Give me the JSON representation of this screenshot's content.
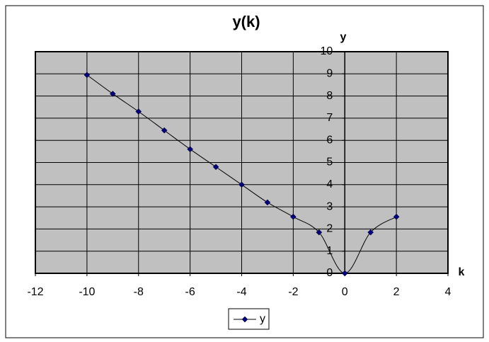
{
  "chart_data": {
    "type": "line",
    "title": "y(k)",
    "x_label": "k",
    "y_label": "y",
    "x": [
      -10,
      -9,
      -8,
      -7,
      -6,
      -5,
      -4,
      -3,
      -2,
      -1,
      0,
      1,
      2
    ],
    "series": [
      {
        "name": "y",
        "color": "#000080",
        "values": [
          8.95,
          8.1,
          7.3,
          6.45,
          5.6,
          4.8,
          4.0,
          3.2,
          2.55,
          1.85,
          0,
          1.85,
          2.55
        ]
      }
    ],
    "xlim": [
      -12,
      4
    ],
    "xticks": [
      -12,
      -10,
      -8,
      -6,
      -4,
      -2,
      0,
      2,
      4
    ],
    "ylim": [
      0,
      10
    ],
    "yticks": [
      0,
      1,
      2,
      3,
      4,
      5,
      6,
      7,
      8,
      9,
      10
    ],
    "grid": true,
    "legend": "bottom",
    "plot_background": "#c0c0c0"
  }
}
